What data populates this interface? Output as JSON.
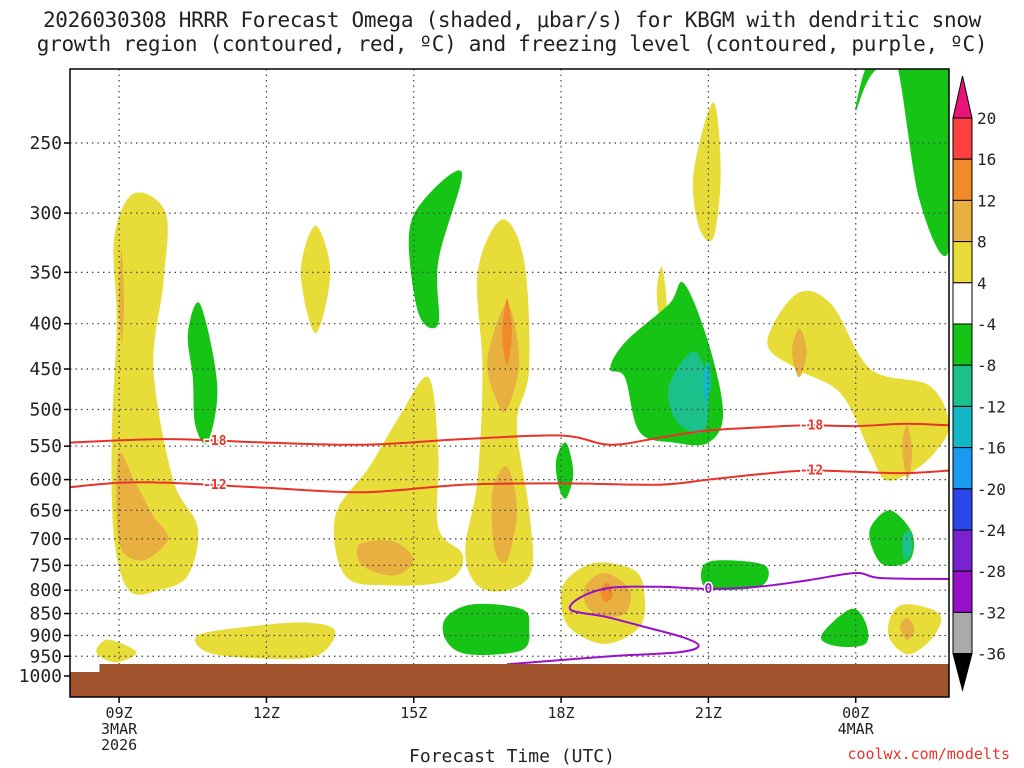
{
  "chart_data": {
    "type": "heatmap",
    "title_line1": "2026030308 HRRR Forecast Omega (shaded, μbar/s) for KBGM with dendritic snow",
    "title_line2": "growth region (contoured, red, ºC) and freezing level (contoured, purple, ºC)",
    "xlabel": "Forecast Time (UTC)",
    "credit": "coolwx.com/modelts",
    "x_range": [
      8,
      25.9
    ],
    "y_range_hpa": [
      200,
      1050
    ],
    "x_ticks": [
      {
        "x": 9,
        "lines": [
          "09Z",
          "3MAR",
          "2026"
        ]
      },
      {
        "x": 12,
        "lines": [
          "12Z"
        ]
      },
      {
        "x": 15,
        "lines": [
          "15Z"
        ]
      },
      {
        "x": 18,
        "lines": [
          "18Z"
        ]
      },
      {
        "x": 21,
        "lines": [
          "21Z"
        ]
      },
      {
        "x": 24,
        "lines": [
          "00Z",
          "4MAR"
        ]
      }
    ],
    "y_ticks": [
      250,
      300,
      350,
      400,
      450,
      500,
      550,
      600,
      650,
      700,
      750,
      800,
      850,
      900,
      950,
      1000
    ],
    "colorbar": {
      "labels": [
        20,
        16,
        12,
        8,
        4,
        -4,
        -8,
        -12,
        -16,
        -20,
        -24,
        -28,
        -32,
        -36
      ],
      "colors": [
        "#ff4040",
        "#f08a2a",
        "#e8b040",
        "#e8dc38",
        "#ffffff",
        "#16c416",
        "#1cc08a",
        "#12b8c8",
        "#1a9af0",
        "#2a46e8",
        "#7a22d2",
        "#9810c8",
        "#aaaaaa"
      ],
      "top_arrow_color": "#e8147a",
      "bottom_arrow_color": "#000000"
    },
    "omega_regions": [
      {
        "level": 4,
        "pts": [
          [
            8.9,
            320
          ],
          [
            9.3,
            285
          ],
          [
            9.95,
            300
          ],
          [
            9.9,
            360
          ],
          [
            9.7,
            450
          ],
          [
            10.1,
            600
          ],
          [
            10.6,
            680
          ],
          [
            10.4,
            770
          ],
          [
            9.8,
            800
          ],
          [
            9.2,
            800
          ],
          [
            8.9,
            700
          ],
          [
            8.85,
            540
          ],
          [
            8.95,
            400
          ]
        ]
      },
      {
        "level": 8,
        "pts": [
          [
            9.0,
            560
          ],
          [
            9.3,
            600
          ],
          [
            9.7,
            660
          ],
          [
            10.0,
            700
          ],
          [
            9.5,
            740
          ],
          [
            9.05,
            720
          ],
          [
            8.95,
            650
          ]
        ]
      },
      {
        "level": 8,
        "pts": [
          [
            9.0,
            370
          ],
          [
            9.05,
            330
          ],
          [
            9.1,
            380
          ],
          [
            9.05,
            420
          ]
        ]
      },
      {
        "level": 4,
        "pts": [
          [
            8.55,
            930
          ],
          [
            8.8,
            910
          ],
          [
            9.35,
            940
          ],
          [
            8.95,
            965
          ],
          [
            8.6,
            950
          ]
        ]
      },
      {
        "level": 4,
        "pts": [
          [
            10.6,
            900
          ],
          [
            11.6,
            880
          ],
          [
            12.8,
            870
          ],
          [
            13.4,
            890
          ],
          [
            13.0,
            950
          ],
          [
            11.8,
            955
          ],
          [
            10.8,
            940
          ]
        ]
      },
      {
        "level": 4,
        "pts": [
          [
            12.7,
            350
          ],
          [
            13.0,
            310
          ],
          [
            13.3,
            350
          ],
          [
            13.0,
            410
          ]
        ]
      },
      {
        "level": 4,
        "pts": [
          [
            13.4,
            660
          ],
          [
            14.1,
            580
          ],
          [
            14.7,
            510
          ],
          [
            15.3,
            460
          ],
          [
            15.5,
            560
          ],
          [
            15.5,
            680
          ],
          [
            16.0,
            730
          ],
          [
            15.7,
            780
          ],
          [
            14.5,
            790
          ],
          [
            13.6,
            770
          ]
        ]
      },
      {
        "level": 8,
        "pts": [
          [
            13.9,
            710
          ],
          [
            14.6,
            705
          ],
          [
            15.0,
            740
          ],
          [
            14.6,
            770
          ],
          [
            13.95,
            750
          ]
        ]
      },
      {
        "level": 4,
        "pts": [
          [
            16.3,
            350
          ],
          [
            16.8,
            305
          ],
          [
            17.25,
            340
          ],
          [
            17.35,
            450
          ],
          [
            17.1,
            520
          ],
          [
            17.35,
            650
          ],
          [
            17.4,
            760
          ],
          [
            16.9,
            800
          ],
          [
            16.3,
            790
          ],
          [
            16.05,
            720
          ],
          [
            16.3,
            600
          ],
          [
            16.4,
            450
          ]
        ]
      },
      {
        "level": 8,
        "pts": [
          [
            16.5,
            440
          ],
          [
            16.9,
            380
          ],
          [
            17.15,
            440
          ],
          [
            16.9,
            500
          ],
          [
            16.7,
            490
          ]
        ]
      },
      {
        "level": 12,
        "pts": [
          [
            16.8,
            410
          ],
          [
            16.9,
            375
          ],
          [
            17.0,
            410
          ],
          [
            16.9,
            445
          ]
        ]
      },
      {
        "level": 8,
        "pts": [
          [
            16.6,
            620
          ],
          [
            16.9,
            580
          ],
          [
            17.1,
            650
          ],
          [
            16.9,
            740
          ],
          [
            16.65,
            720
          ]
        ]
      },
      {
        "level": 4,
        "pts": [
          [
            18.1,
            780
          ],
          [
            18.7,
            745
          ],
          [
            19.5,
            760
          ],
          [
            19.7,
            810
          ],
          [
            19.6,
            880
          ],
          [
            18.9,
            920
          ],
          [
            18.2,
            885
          ],
          [
            18.0,
            830
          ]
        ]
      },
      {
        "level": 8,
        "pts": [
          [
            18.5,
            790
          ],
          [
            18.9,
            765
          ],
          [
            19.4,
            800
          ],
          [
            19.3,
            850
          ],
          [
            18.8,
            855
          ],
          [
            18.5,
            830
          ]
        ]
      },
      {
        "level": 12,
        "pts": [
          [
            18.8,
            800
          ],
          [
            18.95,
            785
          ],
          [
            19.05,
            810
          ],
          [
            18.9,
            825
          ]
        ]
      },
      {
        "level": 4,
        "pts": [
          [
            19.95,
            370
          ],
          [
            20.05,
            345
          ],
          [
            20.15,
            380
          ],
          [
            20.05,
            405
          ]
        ]
      },
      {
        "level": 4,
        "pts": [
          [
            20.7,
            270
          ],
          [
            21.1,
            225
          ],
          [
            21.25,
            270
          ],
          [
            21.1,
            320
          ],
          [
            20.8,
            310
          ]
        ]
      },
      {
        "level": 4,
        "pts": [
          [
            22.2,
            420
          ],
          [
            22.8,
            370
          ],
          [
            23.5,
            380
          ],
          [
            24.3,
            450
          ],
          [
            25.5,
            470
          ],
          [
            25.9,
            520
          ],
          [
            25.6,
            560
          ],
          [
            25.1,
            590
          ],
          [
            24.6,
            600
          ],
          [
            24.3,
            560
          ],
          [
            23.7,
            480
          ],
          [
            22.8,
            450
          ]
        ]
      },
      {
        "level": 8,
        "pts": [
          [
            22.7,
            430
          ],
          [
            22.85,
            405
          ],
          [
            23.0,
            430
          ],
          [
            22.85,
            460
          ]
        ]
      },
      {
        "level": 8,
        "pts": [
          [
            24.95,
            550
          ],
          [
            25.05,
            520
          ],
          [
            25.15,
            560
          ],
          [
            25.05,
            600
          ]
        ]
      },
      {
        "level": 4,
        "pts": [
          [
            24.7,
            860
          ],
          [
            25.0,
            830
          ],
          [
            25.7,
            850
          ],
          [
            25.6,
            900
          ],
          [
            25.1,
            945
          ],
          [
            24.7,
            910
          ]
        ]
      },
      {
        "level": 8,
        "pts": [
          [
            24.9,
            880
          ],
          [
            25.05,
            860
          ],
          [
            25.2,
            885
          ],
          [
            25.05,
            910
          ]
        ]
      },
      {
        "level": -4,
        "pts": [
          [
            10.4,
            410
          ],
          [
            10.65,
            380
          ],
          [
            11.0,
            470
          ],
          [
            10.8,
            545
          ],
          [
            10.55,
            520
          ],
          [
            10.5,
            460
          ]
        ]
      },
      {
        "level": -4,
        "pts": [
          [
            14.9,
            320
          ],
          [
            15.2,
            290
          ],
          [
            15.98,
            270
          ],
          [
            15.5,
            340
          ],
          [
            15.5,
            400
          ],
          [
            15.1,
            390
          ]
        ]
      },
      {
        "level": -4,
        "pts": [
          [
            15.65,
            860
          ],
          [
            16.2,
            830
          ],
          [
            17.2,
            840
          ],
          [
            17.35,
            880
          ],
          [
            17.2,
            935
          ],
          [
            16.1,
            945
          ],
          [
            15.65,
            910
          ]
        ]
      },
      {
        "level": -4,
        "pts": [
          [
            17.9,
            570
          ],
          [
            18.1,
            545
          ],
          [
            18.25,
            590
          ],
          [
            18.1,
            630
          ],
          [
            17.95,
            610
          ]
        ]
      },
      {
        "level": -4,
        "pts": [
          [
            19.0,
            450
          ],
          [
            19.3,
            420
          ],
          [
            20.2,
            380
          ],
          [
            20.5,
            360
          ],
          [
            21.0,
            420
          ],
          [
            21.3,
            505
          ],
          [
            21.0,
            545
          ],
          [
            20.3,
            545
          ],
          [
            19.6,
            530
          ],
          [
            19.3,
            460
          ]
        ]
      },
      {
        "level": -8,
        "pts": [
          [
            20.2,
            470
          ],
          [
            20.7,
            430
          ],
          [
            21.0,
            470
          ],
          [
            20.9,
            530
          ],
          [
            20.35,
            515
          ]
        ]
      },
      {
        "level": -12,
        "pts": [
          [
            20.9,
            460
          ],
          [
            21.0,
            440
          ],
          [
            21.05,
            470
          ],
          [
            20.95,
            490
          ]
        ]
      },
      {
        "level": -4,
        "pts": [
          [
            20.9,
            750
          ],
          [
            21.3,
            740
          ],
          [
            22.15,
            750
          ],
          [
            22.1,
            790
          ],
          [
            21.3,
            800
          ],
          [
            20.9,
            790
          ]
        ]
      },
      {
        "level": -4,
        "pts": [
          [
            24.0,
            230
          ],
          [
            24.5,
            205
          ],
          [
            25.9,
            205
          ],
          [
            25.9,
            330
          ],
          [
            25.3,
            290
          ],
          [
            24.8,
            200
          ],
          [
            24.3,
            200
          ]
        ]
      },
      {
        "level": -4,
        "pts": [
          [
            24.3,
            680
          ],
          [
            24.7,
            650
          ],
          [
            25.15,
            690
          ],
          [
            25.1,
            740
          ],
          [
            24.6,
            750
          ],
          [
            24.35,
            720
          ]
        ]
      },
      {
        "level": -8,
        "pts": [
          [
            24.95,
            700
          ],
          [
            25.1,
            685
          ],
          [
            25.15,
            720
          ],
          [
            25.0,
            740
          ]
        ]
      },
      {
        "level": -4,
        "pts": [
          [
            23.3,
            900
          ],
          [
            23.9,
            840
          ],
          [
            24.2,
            870
          ],
          [
            24.2,
            920
          ],
          [
            23.6,
            925
          ]
        ]
      }
    ],
    "isotherms": [
      {
        "label": "-18",
        "color": "#e8332a",
        "label_x": 10.95,
        "pts": [
          [
            8,
            545
          ],
          [
            10,
            540
          ],
          [
            12,
            545
          ],
          [
            14,
            548
          ],
          [
            16,
            540
          ],
          [
            18,
            535
          ],
          [
            19,
            548
          ],
          [
            20,
            538
          ],
          [
            21,
            528
          ],
          [
            22,
            524
          ],
          [
            23,
            521
          ],
          [
            24,
            522
          ],
          [
            25,
            519
          ],
          [
            25.9,
            521
          ]
        ]
      },
      {
        "label": "-12",
        "color": "#e8332a",
        "label_x": 10.95,
        "pts": [
          [
            8,
            612
          ],
          [
            9,
            605
          ],
          [
            10,
            605
          ],
          [
            12,
            613
          ],
          [
            14,
            620
          ],
          [
            16,
            608
          ],
          [
            18,
            606
          ],
          [
            20,
            608
          ],
          [
            21,
            600
          ],
          [
            22,
            592
          ],
          [
            23,
            586
          ],
          [
            24,
            588
          ],
          [
            25,
            590
          ],
          [
            25.9,
            586
          ]
        ]
      },
      {
        "label": "-18",
        "color": "#e8332a",
        "label_x": 23.1,
        "pts": []
      },
      {
        "label": "-12",
        "color": "#e8332a",
        "label_x": 23.1,
        "pts": []
      },
      {
        "label": "0",
        "color": "#9810c8",
        "label_x": 21.0,
        "pts": [
          [
            16.9,
            970
          ],
          [
            19.0,
            950
          ],
          [
            20.4,
            940
          ],
          [
            20.8,
            925
          ],
          [
            20.5,
            905
          ],
          [
            19.7,
            880
          ],
          [
            18.9,
            857
          ],
          [
            18.2,
            842
          ],
          [
            18.4,
            815
          ],
          [
            19.0,
            795
          ],
          [
            20.0,
            793
          ],
          [
            21.0,
            797
          ],
          [
            22.0,
            793
          ],
          [
            23.0,
            780
          ],
          [
            24.0,
            765
          ],
          [
            24.5,
            775
          ],
          [
            25.9,
            777
          ]
        ]
      }
    ],
    "freezing_level_label": "0",
    "surface_color": "#a0522d"
  }
}
